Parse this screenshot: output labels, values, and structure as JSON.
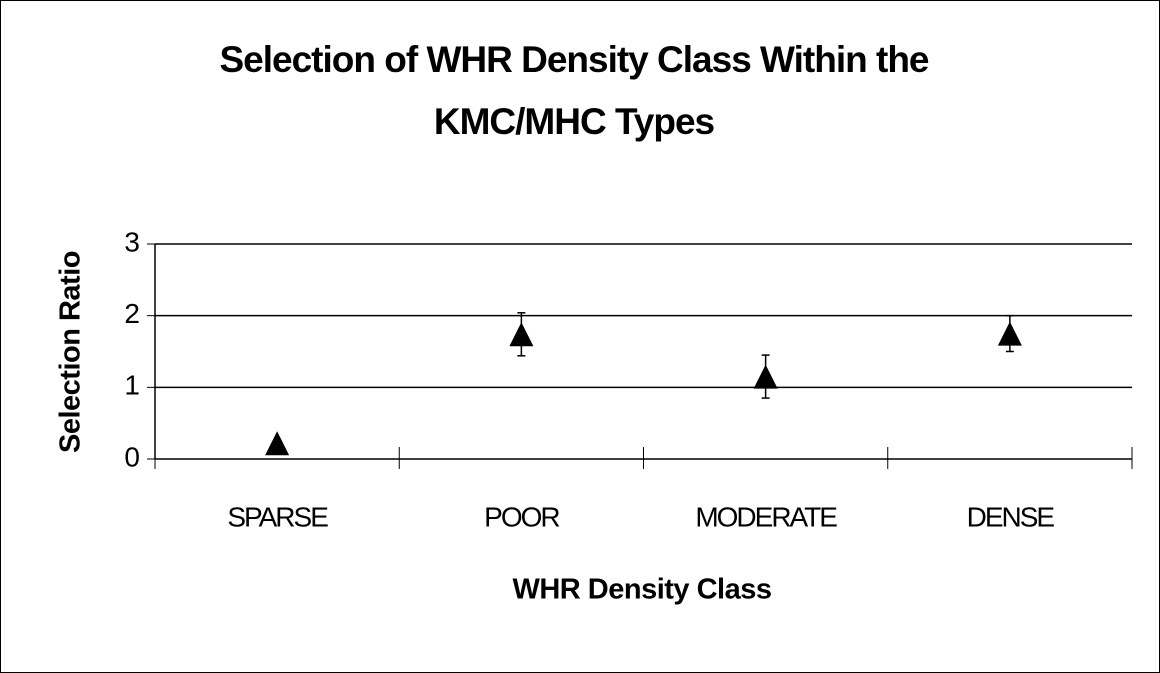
{
  "chart_data": {
    "type": "scatter",
    "title": [
      "Selection of WHR Density Class Within the",
      "KMC/MHC Types"
    ],
    "x_label": "WHR Density Class",
    "y_label": "Selection Ratio",
    "categories": [
      "SPARSE",
      "POOR",
      "MODERATE",
      "DENSE"
    ],
    "values": [
      0.22,
      1.74,
      1.15,
      1.75
    ],
    "errors": [
      0.05,
      0.3,
      0.3,
      0.25
    ],
    "marker": "triangle",
    "color": "#000000",
    "ylim": [
      0,
      3
    ],
    "yticks": [
      0,
      1,
      2,
      3
    ],
    "grid": true
  }
}
